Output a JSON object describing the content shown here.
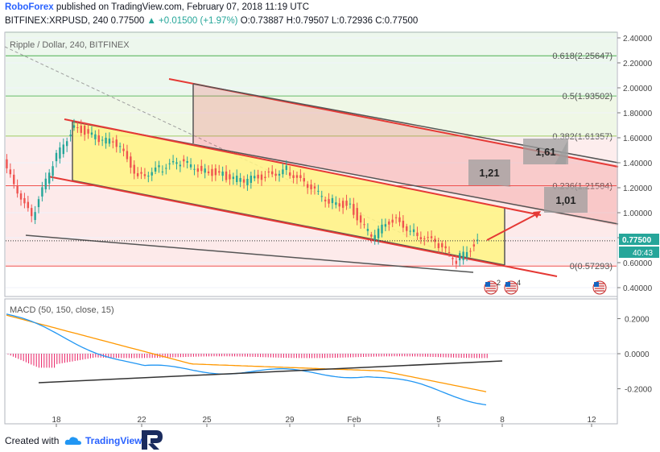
{
  "header": {
    "brand": "RoboForex",
    "published": "published on TradingView.com, February 07, 2018 11:19 UTC",
    "symbol": "BITFINEX:XRPUSD, 240",
    "last": "0.77500",
    "change": "▲ +0.01500 (+1.97%)",
    "ohlc": "O:0.73887 H:0.79507 L:0.72936 C:0.77500"
  },
  "chart_title": "Ripple / Dollar, 240, BITFINEX",
  "price_axis": {
    "ticks": [
      "2.40000",
      "2.20000",
      "2.00000",
      "1.80000",
      "1.60000",
      "1.40000",
      "1.20000",
      "1.00000",
      "0.80000",
      "0.60000",
      "0.40000"
    ],
    "current_price": "0.77500",
    "countdown": "40:43"
  },
  "macd": {
    "label": "MACD (50, 150, close, 15)",
    "ticks": [
      "0.2000",
      "0.0000",
      "-0.2000"
    ]
  },
  "time_axis": {
    "labels": [
      "18",
      "22",
      "25",
      "29",
      "Feb",
      "5",
      "8",
      "12"
    ]
  },
  "fib_levels": [
    {
      "text": "0.618(2.25647)",
      "price": 2.25647,
      "color": "#4caf50"
    },
    {
      "text": "0.5(1.93502)",
      "price": 1.93502,
      "color": "#66bb6a"
    },
    {
      "text": "0.382(1.61357)",
      "price": 1.61357,
      "color": "#9ccc65"
    },
    {
      "text": "0.236(1.21584)",
      "price": 1.21584,
      "color": "#ef5350"
    },
    {
      "text": "0(0.57293)",
      "price": 0.57293,
      "color": "#ef5350"
    }
  ],
  "targets": [
    {
      "text": "1,61",
      "price": 1.61
    },
    {
      "text": "1,21",
      "price": 1.21
    },
    {
      "text": "1,01",
      "price": 1.01
    }
  ],
  "event_badges": [
    "2",
    "4"
  ],
  "footer": {
    "created_with": "Created with",
    "tradingview": "TradingView"
  },
  "colors": {
    "up": "#26a69a",
    "down": "#ef5350",
    "macd": "#2196f3",
    "signal": "#ff9800",
    "hist": "#e91e63",
    "channel": "#fff59d"
  },
  "chart_data": {
    "type": "candlestick",
    "title": "Ripple / Dollar, 240, BITFINEX",
    "symbol": "XRPUSD",
    "timeframe": "240",
    "x_labels": [
      "18",
      "22",
      "25",
      "29",
      "Feb",
      "5",
      "8",
      "12"
    ],
    "ylim": [
      0.3,
      2.45
    ],
    "current_price": 0.775,
    "ohlc_last": {
      "open": 0.73887,
      "high": 0.79507,
      "low": 0.72936,
      "close": 0.775
    },
    "approx_close_path": [
      {
        "x": "Jan 15",
        "y": 1.75
      },
      {
        "x": "Jan 16",
        "y": 1.3
      },
      {
        "x": "Jan 17",
        "y": 0.95
      },
      {
        "x": "Jan 18",
        "y": 1.4
      },
      {
        "x": "Jan 19",
        "y": 1.7
      },
      {
        "x": "Jan 20",
        "y": 1.6
      },
      {
        "x": "Jan 21",
        "y": 1.55
      },
      {
        "x": "Jan 22",
        "y": 1.3
      },
      {
        "x": "Jan 23",
        "y": 1.35
      },
      {
        "x": "Jan 24",
        "y": 1.4
      },
      {
        "x": "Jan 25",
        "y": 1.35
      },
      {
        "x": "Jan 26",
        "y": 1.3
      },
      {
        "x": "Jan 27",
        "y": 1.25
      },
      {
        "x": "Jan 28",
        "y": 1.3
      },
      {
        "x": "Jan 29",
        "y": 1.35
      },
      {
        "x": "Jan 30",
        "y": 1.2
      },
      {
        "x": "Jan 31",
        "y": 1.1
      },
      {
        "x": "Feb 1",
        "y": 1.05
      },
      {
        "x": "Feb 2",
        "y": 0.8
      },
      {
        "x": "Feb 3",
        "y": 0.95
      },
      {
        "x": "Feb 4",
        "y": 0.85
      },
      {
        "x": "Feb 5",
        "y": 0.75
      },
      {
        "x": "Feb 6",
        "y": 0.62
      },
      {
        "x": "Feb 7",
        "y": 0.775
      }
    ]
  }
}
